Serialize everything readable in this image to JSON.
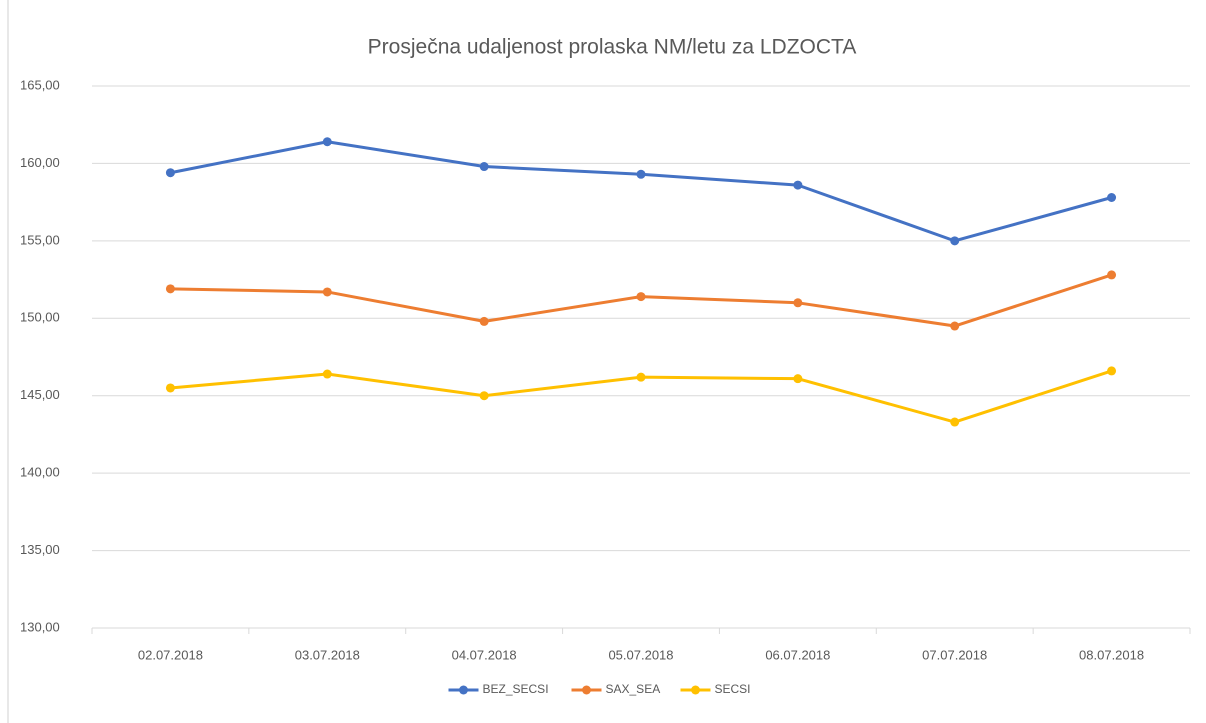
{
  "chart_data": {
    "type": "line",
    "title": "Prosječna udaljenost prolaska NM/letu za LDZOCTA",
    "categories": [
      "02.07.2018",
      "03.07.2018",
      "04.07.2018",
      "05.07.2018",
      "06.07.2018",
      "07.07.2018",
      "08.07.2018"
    ],
    "series": [
      {
        "name": "BEZ_SECSI",
        "color": "#4472c4",
        "values": [
          159.4,
          161.4,
          159.8,
          159.3,
          158.6,
          155.0,
          157.8
        ]
      },
      {
        "name": "SAX_SEA",
        "color": "#ed7d31",
        "values": [
          151.9,
          151.7,
          149.8,
          151.4,
          151.0,
          149.5,
          152.8
        ]
      },
      {
        "name": "SECSI",
        "color": "#ffc000",
        "values": [
          145.5,
          146.4,
          145.0,
          146.2,
          146.1,
          143.3,
          146.6
        ]
      }
    ],
    "ylim": [
      130,
      165
    ],
    "yticks": [
      {
        "value": 130,
        "label": "130,00"
      },
      {
        "value": 135,
        "label": "135,00"
      },
      {
        "value": 140,
        "label": "140,00"
      },
      {
        "value": 145,
        "label": "145,00"
      },
      {
        "value": 150,
        "label": "150,00"
      },
      {
        "value": 155,
        "label": "155,00"
      },
      {
        "value": 160,
        "label": "160,00"
      },
      {
        "value": 165,
        "label": "165,00"
      }
    ],
    "grid": true,
    "legend": "bottom"
  }
}
